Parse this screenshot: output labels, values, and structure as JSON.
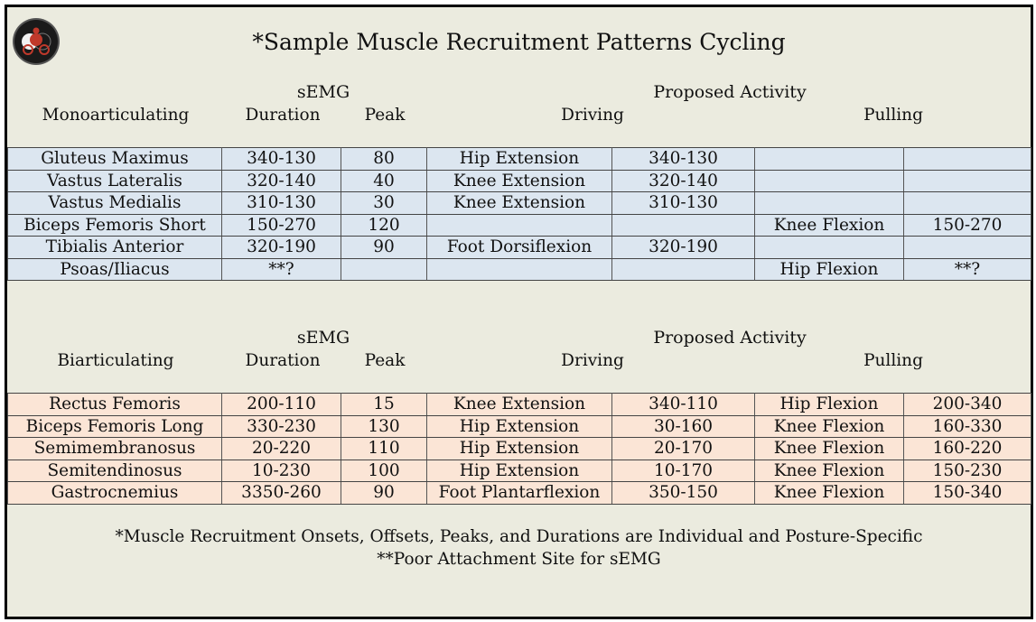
{
  "title": "*Sample Muscle Recruitment Patterns Cycling",
  "section1": {
    "semg_label": "sEMG",
    "proposed_label": "Proposed Activity",
    "group_label": "Monoarticulating",
    "duration_label": "Duration",
    "peak_label": "Peak",
    "driving_label": "Driving",
    "pulling_label": "Pulling",
    "rows": [
      [
        "Gluteus Maximus",
        "340-130",
        "80",
        "Hip Extension",
        "340-130",
        "",
        ""
      ],
      [
        "Vastus Lateralis",
        "320-140",
        "40",
        "Knee Extension",
        "320-140",
        "",
        ""
      ],
      [
        "Vastus Medialis",
        "310-130",
        "30",
        "Knee Extension",
        "310-130",
        "",
        ""
      ],
      [
        "Biceps Femoris Short",
        "150-270",
        "120",
        "",
        "",
        "Knee Flexion",
        "150-270"
      ],
      [
        "Tibialis Anterior",
        "320-190",
        "90",
        "Foot Dorsiflexion",
        "320-190",
        "",
        ""
      ],
      [
        "Psoas/Iliacus",
        "**?",
        "",
        "",
        "",
        "Hip Flexion",
        "**?"
      ]
    ]
  },
  "section2": {
    "semg_label": "sEMG",
    "proposed_label": "Proposed Activity",
    "group_label": "Biarticulating",
    "duration_label": "Duration",
    "peak_label": "Peak",
    "driving_label": "Driving",
    "pulling_label": "Pulling",
    "rows": [
      [
        "Rectus Femoris",
        "200-110",
        "15",
        "Knee Extension",
        "340-110",
        "Hip Flexion",
        "200-340"
      ],
      [
        "Biceps Femoris Long",
        "330-230",
        "130",
        "Hip Extension",
        "30-160",
        "Knee Flexion",
        "160-330"
      ],
      [
        "Semimembranosus",
        "20-220",
        "110",
        "Hip Extension",
        "20-170",
        "Knee Flexion",
        "160-220"
      ],
      [
        "Semitendinosus",
        "10-230",
        "100",
        "Hip Extension",
        "10-170",
        "Knee Flexion",
        "150-230"
      ],
      [
        "Gastrocnemius",
        "3350-260",
        "90",
        "Foot Plantarflexion",
        "350-150",
        "Knee Flexion",
        "150-340"
      ]
    ]
  },
  "footer": {
    "line1": "*Muscle Recruitment Onsets, Offsets, Peaks, and Durations are Individual and Posture-Specific",
    "line2": "**Poor Attachment Site for sEMG"
  },
  "colors": {
    "background": "#ebebdf",
    "table1_fill": "#dce6f0",
    "table2_fill": "#fbe5d6",
    "border": "#000000"
  },
  "icons": {
    "logo": "cyclist-logo-icon"
  }
}
